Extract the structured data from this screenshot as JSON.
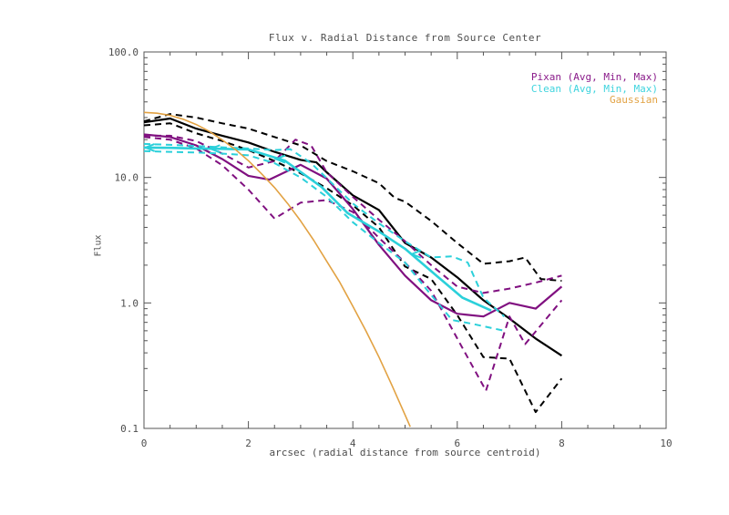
{
  "window": {
    "background": "#ffffff",
    "axis_color": "#555555"
  },
  "chart_data": {
    "type": "line",
    "title": "Flux v. Radial Distance from Source Center",
    "xlabel": "arcsec (radial distance from source centroid)",
    "ylabel": "Flux",
    "grid": false,
    "legend_position": "top-right-inside",
    "x_axis": {
      "min": 0,
      "max": 10,
      "major_ticks": [
        0,
        2,
        4,
        6,
        8,
        10
      ],
      "tick_labels": [
        "0",
        "2",
        "4",
        "6",
        "8",
        "10"
      ],
      "minor_step": 0.5
    },
    "y_axis": {
      "scale": "log",
      "min": 0.1,
      "max": 100,
      "major_ticks": [
        100,
        10,
        1,
        0.1
      ],
      "tick_labels": [
        "100.0",
        "10.0",
        "1.0",
        "0.1"
      ]
    },
    "legend": [
      {
        "name": "legend-pixan",
        "label": "Pixan (Avg, Min, Max)",
        "color": "#8a1b8a"
      },
      {
        "name": "legend-clean",
        "label": "Clean (Avg, Min, Max)",
        "color": "#3fd4de"
      },
      {
        "name": "legend-gaussian",
        "label": "Gaussian",
        "color": "#e2a243"
      }
    ],
    "series": [
      {
        "name": "data-avg",
        "color": "#000000",
        "style": "solid",
        "width": 2.2,
        "points": [
          [
            0,
            27.5
          ],
          [
            0.5,
            29.5
          ],
          [
            1,
            24.5
          ],
          [
            1.5,
            21.5
          ],
          [
            2,
            19
          ],
          [
            2.5,
            16
          ],
          [
            3,
            13.8
          ],
          [
            3.3,
            13.2
          ],
          [
            3.5,
            11
          ],
          [
            4,
            7.2
          ],
          [
            4.5,
            5.5
          ],
          [
            5,
            3.0
          ],
          [
            5.5,
            2.3
          ],
          [
            6,
            1.6
          ],
          [
            6.5,
            1.05
          ],
          [
            7,
            0.75
          ],
          [
            7.5,
            0.52
          ],
          [
            8,
            0.38
          ]
        ]
      },
      {
        "name": "data-max",
        "color": "#000000",
        "style": "dashed",
        "width": 2,
        "points": [
          [
            0,
            28
          ],
          [
            0.5,
            32
          ],
          [
            1,
            30
          ],
          [
            1.5,
            27
          ],
          [
            2,
            24.5
          ],
          [
            2.5,
            21
          ],
          [
            3,
            18
          ],
          [
            3.5,
            13.5
          ],
          [
            4,
            11.2
          ],
          [
            4.5,
            9.0
          ],
          [
            4.8,
            6.9
          ],
          [
            5,
            6.4
          ],
          [
            5.5,
            4.5
          ],
          [
            6,
            3.0
          ],
          [
            6.5,
            2.05
          ],
          [
            7,
            2.15
          ],
          [
            7.3,
            2.3
          ],
          [
            7.6,
            1.55
          ],
          [
            8,
            1.5
          ]
        ]
      },
      {
        "name": "data-min",
        "color": "#000000",
        "style": "dashed",
        "width": 2,
        "points": [
          [
            0,
            26
          ],
          [
            0.5,
            27
          ],
          [
            1,
            22.5
          ],
          [
            1.5,
            19.5
          ],
          [
            2,
            16.5
          ],
          [
            2.5,
            13.5
          ],
          [
            3,
            10.8
          ],
          [
            3.5,
            8.2
          ],
          [
            4,
            6.0
          ],
          [
            4.5,
            4.0
          ],
          [
            5,
            1.95
          ],
          [
            5.5,
            1.55
          ],
          [
            6,
            0.8
          ],
          [
            6.5,
            0.37
          ],
          [
            7,
            0.36
          ],
          [
            7.5,
            0.135
          ],
          [
            8,
            0.25
          ]
        ]
      },
      {
        "name": "pixan-max",
        "color": "#801080",
        "style": "dashed",
        "width": 2,
        "points": [
          [
            0,
            21.5
          ],
          [
            0.5,
            21.5
          ],
          [
            1,
            19.5
          ],
          [
            1.5,
            15.5
          ],
          [
            2,
            12
          ],
          [
            2.5,
            13.5
          ],
          [
            2.9,
            20
          ],
          [
            3.2,
            18
          ],
          [
            3.5,
            11
          ],
          [
            4,
            7
          ],
          [
            4.5,
            4.6
          ],
          [
            5,
            3.1
          ],
          [
            5.5,
            2.0
          ],
          [
            6,
            1.35
          ],
          [
            6.5,
            1.2
          ],
          [
            7,
            1.3
          ],
          [
            7.5,
            1.45
          ],
          [
            8,
            1.65
          ]
        ]
      },
      {
        "name": "pixan-min",
        "color": "#801080",
        "style": "dashed",
        "width": 2,
        "points": [
          [
            0,
            21
          ],
          [
            0.5,
            20
          ],
          [
            1,
            17
          ],
          [
            1.5,
            12.5
          ],
          [
            2,
            8
          ],
          [
            2.5,
            4.7
          ],
          [
            3,
            6.3
          ],
          [
            3.5,
            6.6
          ],
          [
            4,
            5.3
          ],
          [
            4.5,
            3.3
          ],
          [
            5,
            2.1
          ],
          [
            5.5,
            1.25
          ],
          [
            6,
            0.52
          ],
          [
            6.55,
            0.2
          ],
          [
            7,
            0.78
          ],
          [
            7.3,
            0.47
          ],
          [
            8,
            1.05
          ]
        ]
      },
      {
        "name": "pixan-avg",
        "color": "#801080",
        "style": "solid",
        "width": 2.2,
        "points": [
          [
            0,
            22
          ],
          [
            0.5,
            21
          ],
          [
            1,
            18
          ],
          [
            1.5,
            14
          ],
          [
            2,
            10.3
          ],
          [
            2.4,
            9.6
          ],
          [
            3,
            12.6
          ],
          [
            3.5,
            9.8
          ],
          [
            4,
            5.6
          ],
          [
            4.5,
            2.9
          ],
          [
            5,
            1.65
          ],
          [
            5.5,
            1.05
          ],
          [
            6,
            0.82
          ],
          [
            6.5,
            0.78
          ],
          [
            7,
            1.0
          ],
          [
            7.5,
            0.9
          ],
          [
            8,
            1.35
          ]
        ]
      },
      {
        "name": "clean-max",
        "color": "#2bd0da",
        "style": "dashed",
        "width": 2,
        "points": [
          [
            0,
            18.5
          ],
          [
            0.5,
            18.2
          ],
          [
            1,
            17.8
          ],
          [
            1.5,
            17.4
          ],
          [
            2,
            17
          ],
          [
            2.5,
            16.5
          ],
          [
            2.8,
            16.8
          ],
          [
            3.2,
            13
          ],
          [
            3.6,
            9
          ],
          [
            4,
            6.2
          ],
          [
            4.5,
            4.3
          ],
          [
            5,
            3.1
          ],
          [
            5.5,
            2.3
          ],
          [
            5.9,
            2.35
          ],
          [
            6.2,
            2.1
          ],
          [
            6.5,
            1.1
          ],
          [
            6.9,
            0.78
          ]
        ]
      },
      {
        "name": "clean-min",
        "color": "#2bd0da",
        "style": "dashed",
        "width": 2,
        "points": [
          [
            0,
            16.2
          ],
          [
            0.5,
            16
          ],
          [
            1,
            15.8
          ],
          [
            1.5,
            15.5
          ],
          [
            2,
            15
          ],
          [
            2.5,
            13
          ],
          [
            3,
            10
          ],
          [
            3.5,
            7
          ],
          [
            4,
            4.4
          ],
          [
            4.5,
            3.0
          ],
          [
            5,
            2.1
          ],
          [
            5.4,
            1.3
          ],
          [
            5.9,
            0.73
          ],
          [
            6.3,
            0.68
          ],
          [
            6.9,
            0.6
          ]
        ]
      },
      {
        "name": "clean-avg",
        "color": "#2bd0da",
        "style": "solid",
        "width": 2.6,
        "points": [
          [
            0,
            17.3
          ],
          [
            0.5,
            17.2
          ],
          [
            1,
            17
          ],
          [
            1.5,
            16.9
          ],
          [
            2,
            16.7
          ],
          [
            2.7,
            13.6
          ],
          [
            3.4,
            8.4
          ],
          [
            3.9,
            5.2
          ],
          [
            4.5,
            3.7
          ],
          [
            5,
            2.7
          ],
          [
            5.6,
            1.65
          ],
          [
            6.1,
            1.1
          ],
          [
            6.65,
            0.87
          ]
        ]
      },
      {
        "name": "gaussian",
        "color": "#e2a243",
        "style": "solid",
        "width": 1.6,
        "points": [
          [
            0,
            33
          ],
          [
            0.25,
            32.5
          ],
          [
            0.5,
            31.2
          ],
          [
            0.75,
            29.1
          ],
          [
            1,
            26.4
          ],
          [
            1.25,
            23.3
          ],
          [
            1.5,
            19.9
          ],
          [
            1.75,
            16.7
          ],
          [
            2,
            13.6
          ],
          [
            2.25,
            10.7
          ],
          [
            2.5,
            8.3
          ],
          [
            2.75,
            6.2
          ],
          [
            3,
            4.5
          ],
          [
            3.25,
            3.16
          ],
          [
            3.5,
            2.15
          ],
          [
            3.75,
            1.46
          ],
          [
            4,
            0.94
          ],
          [
            4.25,
            0.6
          ],
          [
            4.5,
            0.37
          ],
          [
            4.75,
            0.22
          ],
          [
            5,
            0.128
          ],
          [
            5.1,
            0.103
          ]
        ]
      }
    ],
    "markers": {
      "name": "clean-avg-arrow-markers",
      "shape": "left-arrow",
      "color": "#2bd0da",
      "points": [
        [
          0.1,
          17.3
        ],
        [
          1.35,
          16.9
        ],
        [
          2.6,
          14.0
        ],
        [
          5.2,
          2.45
        ]
      ]
    }
  }
}
